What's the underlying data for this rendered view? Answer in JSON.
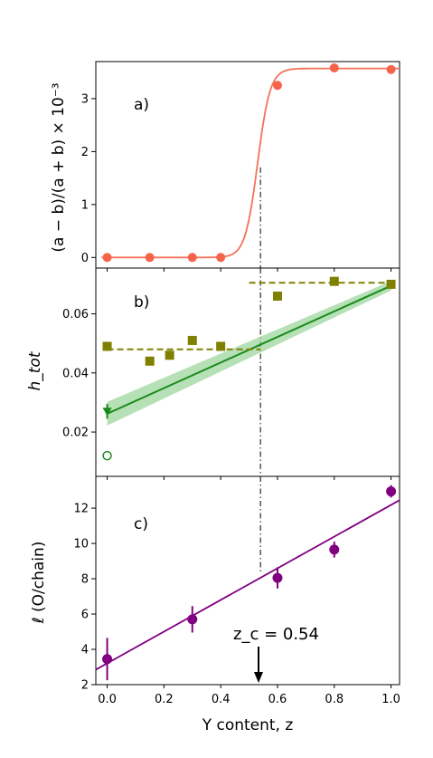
{
  "chart_data": [
    {
      "type": "line",
      "panel_label": "a)",
      "ylabel": "(a − b)/(a + b) × 10⁻³",
      "xlim": [
        -0.04,
        1.03
      ],
      "ylim": [
        -0.2,
        3.7
      ],
      "yticks": [
        0,
        1,
        2,
        3
      ],
      "points": {
        "x": [
          0.0,
          0.15,
          0.3,
          0.4,
          0.6,
          0.8,
          1.0
        ],
        "y": [
          0.0,
          0.0,
          0.0,
          0.0,
          3.25,
          3.58,
          3.55
        ]
      },
      "fit": {
        "type": "sigmoid",
        "low": 0.0,
        "high": 3.57,
        "center": 0.53,
        "width": 0.022
      },
      "color": "#f4634a",
      "fit_color": "#f4725a"
    },
    {
      "type": "scatter",
      "panel_label": "b)",
      "ylabel": "h_tot",
      "xlim": [
        -0.04,
        1.03
      ],
      "ylim": [
        0.005,
        0.0755
      ],
      "yticks": [
        0.02,
        0.04,
        0.06
      ],
      "series": [
        {
          "x": [
            0.0,
            0.15,
            0.22,
            0.3,
            0.4,
            0.6,
            0.8,
            1.0
          ],
          "y": [
            0.049,
            0.044,
            0.046,
            0.051,
            0.049,
            0.066,
            0.071,
            0.07
          ],
          "err": 0.0015,
          "marker": "square",
          "color": "#808000"
        },
        {
          "x": [
            0.0
          ],
          "y": [
            0.027
          ],
          "err": 0.0025,
          "marker": "triangle-down",
          "color": "#1a8a1a"
        },
        {
          "x": [
            0.0
          ],
          "y": [
            0.012
          ],
          "err": 0.0015,
          "marker": "open-circle",
          "color": "#1a8a1a"
        }
      ],
      "trend": {
        "x": [
          0.0,
          1.0
        ],
        "y": [
          0.0262,
          0.0695
        ],
        "band": 0.004,
        "color": "#1a8a1a"
      },
      "dashed_levels": [
        {
          "x": [
            0.0,
            0.54
          ],
          "y": 0.048
        },
        {
          "x": [
            0.5,
            1.0
          ],
          "y": 0.0705
        }
      ],
      "dashed_color": "#808000"
    },
    {
      "type": "scatter",
      "panel_label": "c)",
      "ylabel": "ℓ (O/chain)",
      "xlabel": "Y content, z",
      "xlim": [
        -0.04,
        1.03
      ],
      "ylim": [
        2,
        13.8
      ],
      "yticks": [
        2,
        4,
        6,
        8,
        10,
        12
      ],
      "xticks": [
        0.0,
        0.2,
        0.4,
        0.6,
        0.8,
        1.0
      ],
      "xticklabels": [
        "0.0",
        "0.2",
        "0.4",
        "0.6",
        "0.8",
        "1.0"
      ],
      "points": {
        "x": [
          0.0,
          0.3,
          0.6,
          0.8,
          1.0
        ],
        "y": [
          3.45,
          5.7,
          8.05,
          9.65,
          12.95
        ],
        "err": [
          1.2,
          0.75,
          0.6,
          0.45,
          0.35
        ]
      },
      "fit": {
        "x": [
          -0.04,
          1.03
        ],
        "y": [
          2.85,
          12.45
        ]
      },
      "color": "#800080"
    }
  ],
  "marker": {
    "z_c": 0.54,
    "label": "z_c = 0.54"
  }
}
